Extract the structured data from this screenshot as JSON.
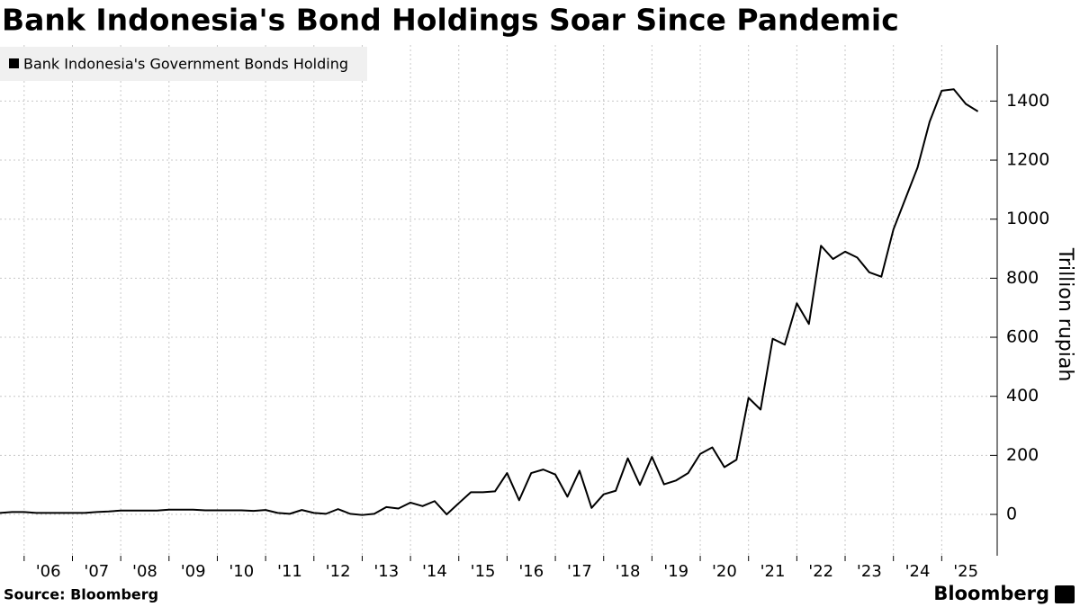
{
  "chart_data": {
    "type": "line",
    "title": "Bank Indonesia's Bond Holdings Soar Since Pandemic",
    "y_axis_label": "Trillion rupiah",
    "source": "Source: Bloomberg",
    "brand": "Bloomberg",
    "x": [
      2005.5,
      2005.75,
      2006,
      2006.25,
      2006.5,
      2006.75,
      2007,
      2007.25,
      2007.5,
      2007.75,
      2008,
      2008.25,
      2008.5,
      2008.75,
      2009,
      2009.25,
      2009.5,
      2009.75,
      2010,
      2010.25,
      2010.5,
      2010.75,
      2011,
      2011.25,
      2011.5,
      2011.75,
      2012,
      2012.25,
      2012.5,
      2012.75,
      2013,
      2013.25,
      2013.5,
      2013.75,
      2014,
      2014.25,
      2014.5,
      2014.75,
      2015,
      2015.25,
      2015.5,
      2015.75,
      2016,
      2016.25,
      2016.5,
      2016.75,
      2017,
      2017.25,
      2017.5,
      2017.75,
      2018,
      2018.25,
      2018.5,
      2018.75,
      2019,
      2019.25,
      2019.5,
      2019.75,
      2020,
      2020.25,
      2020.5,
      2020.75,
      2021,
      2021.25,
      2021.5,
      2021.75,
      2022,
      2022.25,
      2022.5,
      2022.75,
      2023,
      2023.25,
      2023.5,
      2023.75,
      2024,
      2024.25,
      2024.5,
      2024.75,
      2025,
      2025.25,
      2025.5,
      2025.75
    ],
    "series": [
      {
        "name": "Bank Indonesia's Government Bonds Holding",
        "color": "#000000",
        "values": [
          5,
          8,
          8,
          5,
          5,
          5,
          5,
          5,
          8,
          10,
          13,
          13,
          13,
          13,
          16,
          16,
          16,
          14,
          14,
          14,
          14,
          12,
          15,
          5,
          2,
          15,
          5,
          2,
          18,
          2,
          -2,
          2,
          25,
          20,
          40,
          28,
          45,
          0,
          38,
          75,
          75,
          78,
          140,
          48,
          140,
          152,
          135,
          60,
          148,
          22,
          68,
          80,
          190,
          100,
          195,
          102,
          115,
          140,
          205,
          227,
          160,
          185,
          395,
          355,
          595,
          575,
          715,
          645,
          910,
          865,
          890,
          870,
          820,
          805,
          965,
          1070,
          1175,
          1330,
          1435,
          1440,
          1390,
          1365
        ]
      }
    ],
    "xlim": [
      2005.5,
      2026
    ],
    "xticks": [
      {
        "value": 2006,
        "label": "'06"
      },
      {
        "value": 2007,
        "label": "'07"
      },
      {
        "value": 2008,
        "label": "'08"
      },
      {
        "value": 2009,
        "label": "'09"
      },
      {
        "value": 2010,
        "label": "'10"
      },
      {
        "value": 2011,
        "label": "'11"
      },
      {
        "value": 2012,
        "label": "'12"
      },
      {
        "value": 2013,
        "label": "'13"
      },
      {
        "value": 2014,
        "label": "'14"
      },
      {
        "value": 2015,
        "label": "'15"
      },
      {
        "value": 2016,
        "label": "'16"
      },
      {
        "value": 2017,
        "label": "'17"
      },
      {
        "value": 2018,
        "label": "'18"
      },
      {
        "value": 2019,
        "label": "'19"
      },
      {
        "value": 2020,
        "label": "'20"
      },
      {
        "value": 2021,
        "label": "'21"
      },
      {
        "value": 2022,
        "label": "'22"
      },
      {
        "value": 2023,
        "label": "'23"
      },
      {
        "value": 2024,
        "label": "'24"
      },
      {
        "value": 2025,
        "label": "'25"
      }
    ],
    "ylim": [
      -140,
      1590
    ],
    "yticks": [
      0,
      200,
      400,
      600,
      800,
      1000,
      1200,
      1400
    ],
    "grid": true
  }
}
